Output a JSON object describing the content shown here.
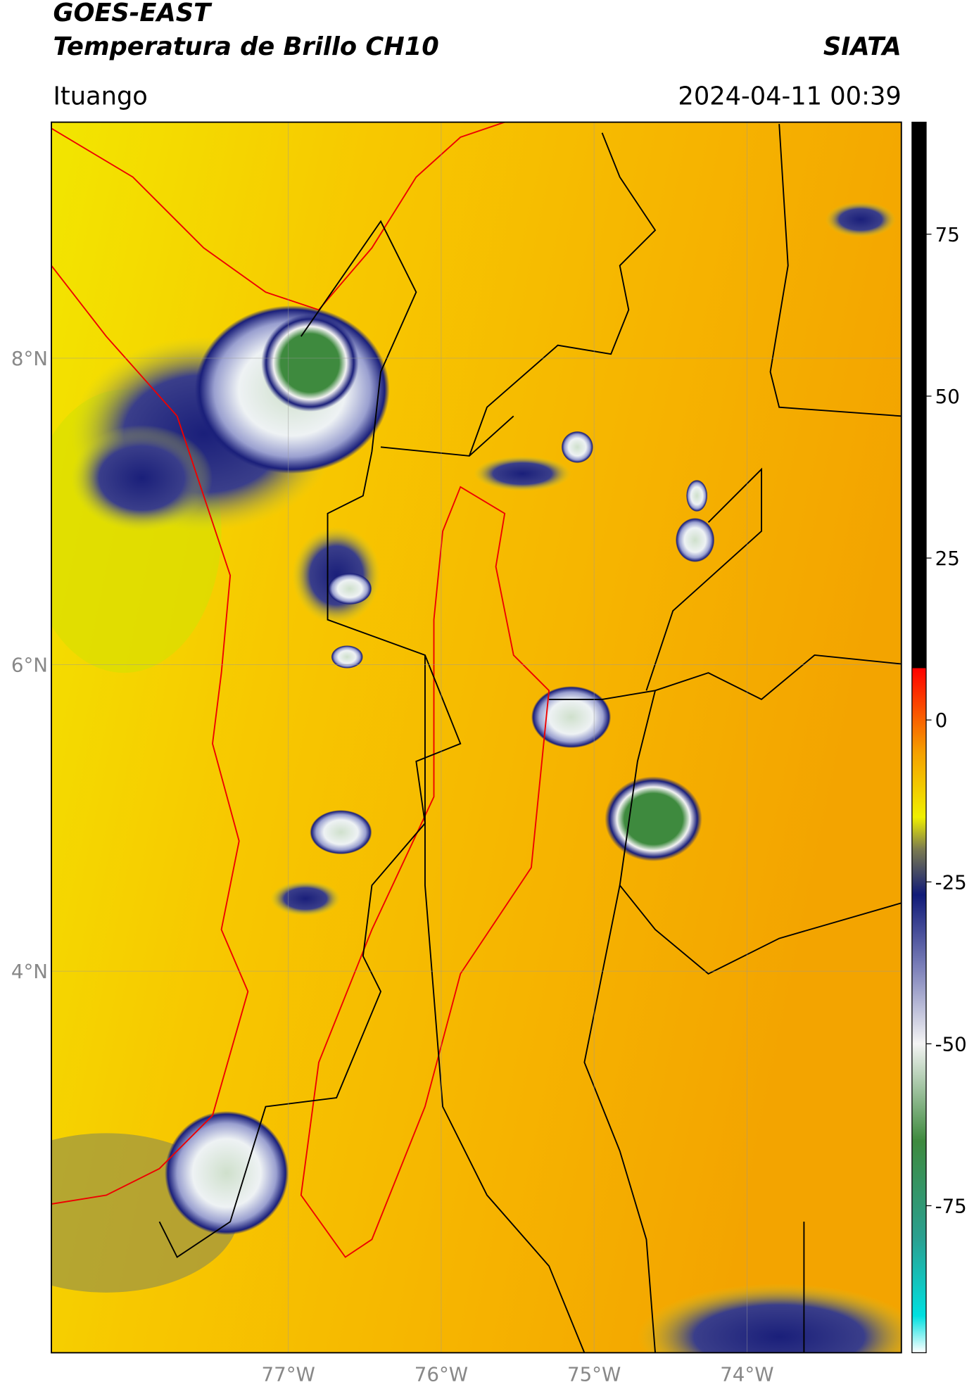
{
  "header": {
    "title_line1": "GOES-EAST",
    "title_line2": "Temperatura de Brillo CH10",
    "source": "SIATA",
    "region": "Ituango",
    "timestamp": "2024-04-11 00:39"
  },
  "map": {
    "lonlim": [
      -78.55,
      -72.99
    ],
    "latlim": [
      1.51,
      9.54
    ],
    "lon_ticks": [
      {
        "value": -77,
        "label": "77°W"
      },
      {
        "value": -76,
        "label": "76°W"
      },
      {
        "value": -75,
        "label": "75°W"
      },
      {
        "value": -74,
        "label": "74°W"
      }
    ],
    "lat_ticks": [
      {
        "value": 8,
        "label": "8°N"
      },
      {
        "value": 6,
        "label": "6°N"
      },
      {
        "value": 4,
        "label": "4°N"
      }
    ]
  },
  "colorbar": {
    "lim": [
      -97.7,
      92.3
    ],
    "ticks": [
      75,
      50,
      25,
      0,
      -25,
      -50,
      -75
    ]
  }
}
